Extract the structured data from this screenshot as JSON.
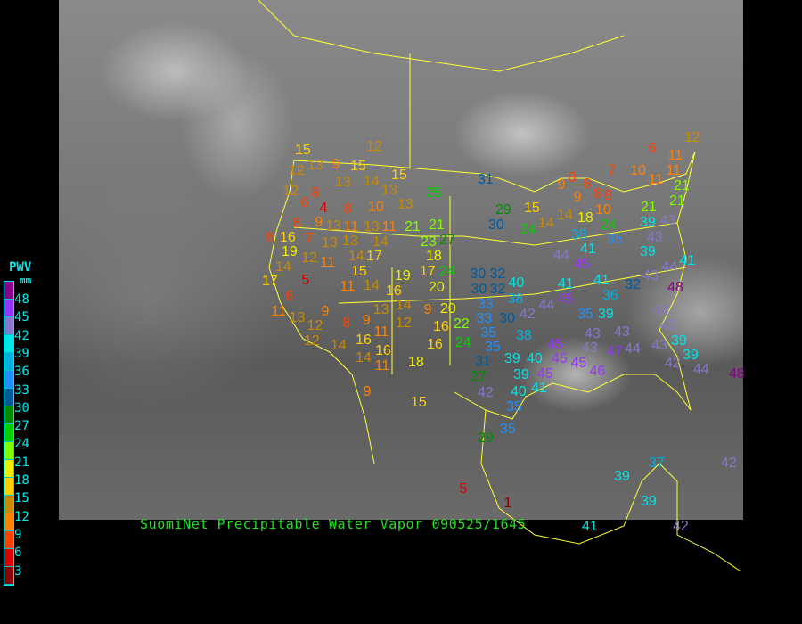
{
  "caption": "SuomiNet Precipitable Water Vapor 090525/1645",
  "legend": {
    "title": "PWV",
    "unit": "mm",
    "labels": [
      "48",
      "45",
      "42",
      "39",
      "36",
      "33",
      "30",
      "27",
      "24",
      "21",
      "18",
      "15",
      "12",
      "9",
      "6",
      "3"
    ],
    "colors_top_to_bottom": [
      "#8b008b",
      "#9933ff",
      "#8877cc",
      "#00e5e5",
      "#00b0e0",
      "#1e90ff",
      "#005a9a",
      "#008c00",
      "#00d000",
      "#80ff00",
      "#f0f000",
      "#ffd000",
      "#c88a00",
      "#ff8000",
      "#ff4000",
      "#d80000",
      "#8b0000"
    ]
  },
  "colors": {
    "map_borders": "#ffff33",
    "caption": "#22e022",
    "legend_text": "#00e8e8"
  },
  "stations": [
    12,
    15,
    13,
    9,
    15,
    15,
    12,
    13,
    14,
    13,
    12,
    8,
    6,
    25,
    31,
    4,
    9,
    8,
    10,
    13,
    8,
    8,
    13,
    11,
    13,
    11,
    21,
    21,
    27,
    23,
    16,
    7,
    13,
    13,
    14,
    19,
    12,
    14,
    11,
    14,
    17,
    18,
    17,
    24,
    17,
    15,
    5,
    19,
    11,
    14,
    16,
    20,
    32,
    6,
    11,
    13,
    14,
    9,
    20,
    30,
    33,
    9,
    13,
    12,
    12,
    8,
    9,
    12,
    16,
    22,
    35,
    35,
    11,
    16,
    16,
    16,
    24,
    14,
    14,
    11,
    18,
    31,
    27,
    12,
    6,
    11,
    7,
    10,
    11,
    11,
    9,
    8,
    8,
    9,
    8,
    8,
    21,
    21,
    29,
    30,
    15,
    14,
    14,
    18,
    10,
    24,
    24,
    21,
    39,
    43,
    38,
    35,
    43,
    44,
    41,
    45,
    39,
    41,
    44,
    43,
    32,
    40,
    30,
    38,
    41,
    41,
    36,
    32,
    48,
    45,
    44,
    42,
    33,
    30,
    35,
    39,
    44,
    38,
    43,
    43,
    42,
    39,
    43,
    39,
    47,
    44,
    45,
    43,
    45,
    45,
    39,
    40,
    39,
    45,
    46,
    42,
    44,
    48,
    9,
    15,
    42,
    40,
    41,
    35,
    35,
    29,
    5,
    39,
    37,
    42,
    39,
    41,
    42,
    1
  ]
}
